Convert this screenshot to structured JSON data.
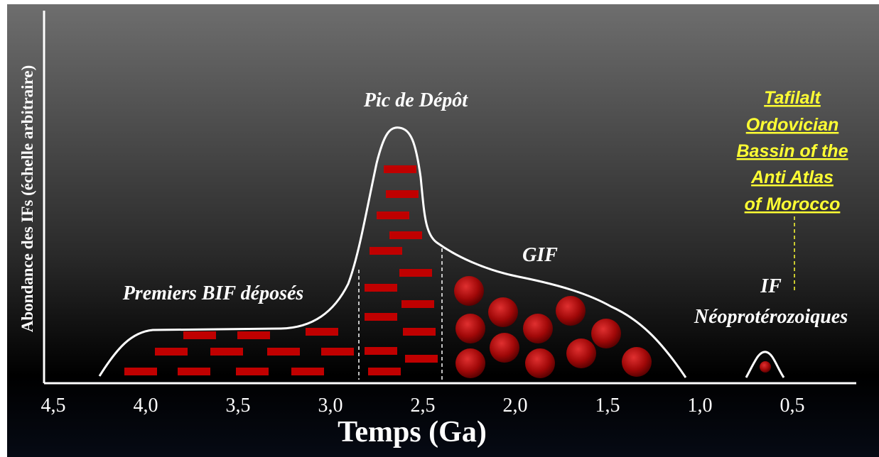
{
  "labels": {
    "peak": "Pic de Dépôt",
    "gif": "GIF",
    "first_bif": "Premiers BIF déposés",
    "if_line1": "IF",
    "if_line2": "Néoprotérozoiques"
  },
  "callout": [
    "Tafilalt",
    "Ordovician",
    "Bassin of the",
    "Anti Atlas",
    "of Morocco"
  ],
  "axis": {
    "y_title": "Abondance des IFs (échelle arbitraire)",
    "x_title": "Temps (Ga)",
    "xticks": [
      {
        "value": 4.5,
        "label": "4,5"
      },
      {
        "value": 4.0,
        "label": "4,0"
      },
      {
        "value": 3.5,
        "label": "3,5"
      },
      {
        "value": 3.0,
        "label": "3,0"
      },
      {
        "value": 2.5,
        "label": "2,5"
      },
      {
        "value": 2.0,
        "label": "2,0"
      },
      {
        "value": 1.5,
        "label": "1,5"
      },
      {
        "value": 1.0,
        "label": "1,0"
      },
      {
        "value": 0.5,
        "label": "0,5"
      }
    ]
  }
}
